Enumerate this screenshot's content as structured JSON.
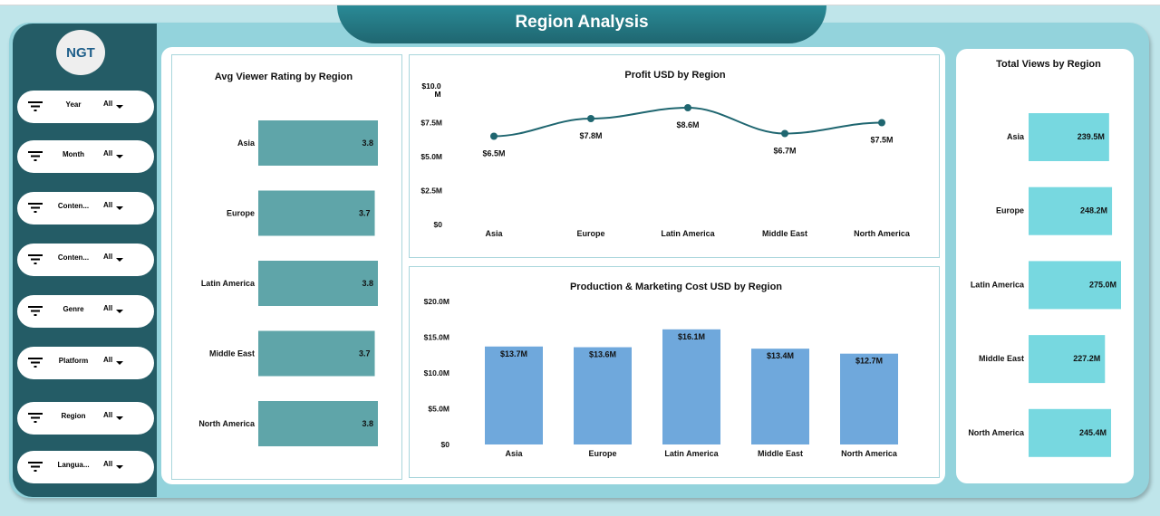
{
  "title": "Region Analysis",
  "logo": "NGT",
  "colors": {
    "sidebar": "#245c66",
    "rating_bar": "#5fa5a9",
    "views_bar": "#77d8e0",
    "cost_bar": "#6fa8dc",
    "line": "#1f6670"
  },
  "filters": [
    {
      "label": "Year",
      "value": "All"
    },
    {
      "label": "Month",
      "value": "All"
    },
    {
      "label": "Conten...",
      "value": "All"
    },
    {
      "label": "Conten...",
      "value": "All"
    },
    {
      "label": "Genre",
      "value": "All"
    },
    {
      "label": "Platform",
      "value": "All"
    },
    {
      "label": "Region",
      "value": "All"
    },
    {
      "label": "Langua...",
      "value": "All"
    }
  ],
  "chart_data": [
    {
      "type": "bar",
      "orientation": "horizontal",
      "title": "Avg Viewer Rating by Region",
      "categories": [
        "Asia",
        "Europe",
        "Latin America",
        "Middle East",
        "North America"
      ],
      "values": [
        3.8,
        3.7,
        3.8,
        3.7,
        3.8
      ],
      "labels": [
        "3.8",
        "3.7",
        "3.8",
        "3.7",
        "3.8"
      ]
    },
    {
      "type": "line",
      "title": "Profit USD by Region",
      "categories": [
        "Asia",
        "Europe",
        "Latin America",
        "Middle East",
        "North America"
      ],
      "values": [
        6.5,
        7.8,
        8.6,
        6.7,
        7.5
      ],
      "labels": [
        "$6.5M",
        "$7.8M",
        "$8.6M",
        "$6.7M",
        "$7.5M"
      ],
      "ylim": [
        0,
        10
      ],
      "yticks": [
        "$0",
        "$2.5M",
        "$5.0M",
        "$7.5M",
        "$10.0 M"
      ],
      "smooth": true
    },
    {
      "type": "bar",
      "title": "Production & Marketing Cost USD by Region",
      "categories": [
        "Asia",
        "Europe",
        "Latin America",
        "Middle East",
        "North America"
      ],
      "values": [
        13.7,
        13.6,
        16.1,
        13.4,
        12.7
      ],
      "labels": [
        "$13.7M",
        "$13.6M",
        "$16.1M",
        "$13.4M",
        "$12.7M"
      ],
      "ylim": [
        0,
        20
      ],
      "yticks": [
        "$0",
        "$5.0M",
        "$10.0M",
        "$15.0M",
        "$20.0M"
      ]
    },
    {
      "type": "bar",
      "orientation": "horizontal",
      "title": "Total Views by Region",
      "categories": [
        "Asia",
        "Europe",
        "Latin America",
        "Middle East",
        "North America"
      ],
      "values": [
        239.5,
        248.2,
        275.0,
        227.2,
        245.4
      ],
      "labels": [
        "239.5M",
        "248.2M",
        "275.0M",
        "227.2M",
        "245.4M"
      ]
    }
  ]
}
